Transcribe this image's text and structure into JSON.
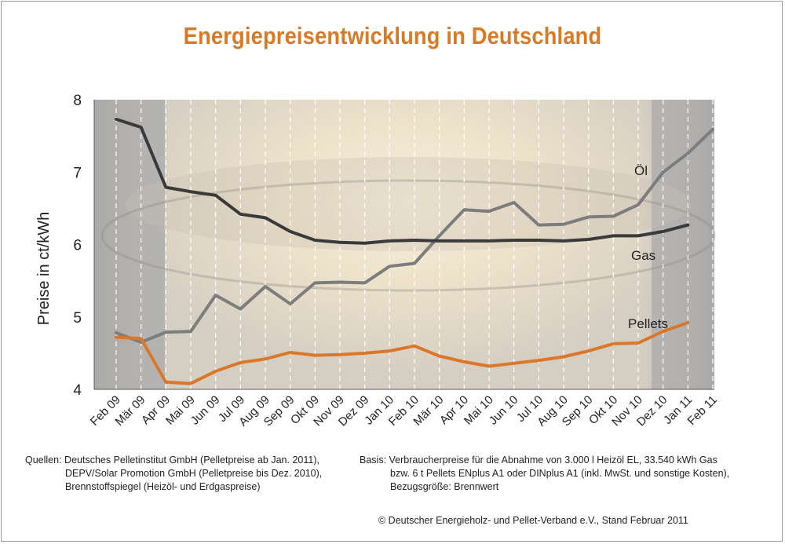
{
  "title": "Energiepreisentwicklung in Deutschland",
  "chart_data": {
    "type": "line",
    "title": "Energiepreisentwicklung in Deutschland",
    "ylabel": "Preise in ct/kWh",
    "xlabel": "",
    "ylim": [
      4,
      8
    ],
    "yticks": [
      4,
      5,
      6,
      7,
      8
    ],
    "grid": "vertical dashed",
    "categories": [
      "Feb 09",
      "Mär 09",
      "Apr 09",
      "Mai 09",
      "Jun 09",
      "Jul 09",
      "Aug 09",
      "Sep 09",
      "Okt 09",
      "Nov 09",
      "Dez 09",
      "Jan 10",
      "Feb 10",
      "Mär 10",
      "Apr 10",
      "Mai 10",
      "Jun 10",
      "Jul 10",
      "Aug 10",
      "Sep 10",
      "Okt 10",
      "Nov 10",
      "Dez 10",
      "Jan 11",
      "Feb 11"
    ],
    "series": [
      {
        "name": "Öl",
        "color": "#7d7d7d",
        "values": [
          4.78,
          4.65,
          4.79,
          4.8,
          5.3,
          5.11,
          5.42,
          5.18,
          5.47,
          5.48,
          5.47,
          5.7,
          5.74,
          6.12,
          6.48,
          6.46,
          6.58,
          6.27,
          6.28,
          6.38,
          6.39,
          6.55,
          7.0,
          7.26,
          7.59
        ]
      },
      {
        "name": "Gas",
        "color": "#3a3a3a",
        "values": [
          7.73,
          7.62,
          6.79,
          6.73,
          6.68,
          6.42,
          6.37,
          6.18,
          6.06,
          6.03,
          6.02,
          6.05,
          6.06,
          6.05,
          6.05,
          6.05,
          6.06,
          6.06,
          6.05,
          6.07,
          6.12,
          6.12,
          6.18,
          6.27,
          null
        ]
      },
      {
        "name": "Pellets",
        "color": "#d9782a",
        "values": [
          4.72,
          4.7,
          4.1,
          4.08,
          4.25,
          4.37,
          4.42,
          4.51,
          4.47,
          4.48,
          4.5,
          4.53,
          4.6,
          4.46,
          4.38,
          4.32,
          4.36,
          4.4,
          4.45,
          4.53,
          4.63,
          4.64,
          4.8,
          4.92,
          null
        ]
      }
    ]
  },
  "footer": {
    "sources_label": "Quellen:",
    "sources_lines": [
      "Deutsches Pelletinstitut GmbH (Pelletpreise ab Jan. 2011),",
      "DEPV/Solar Promotion GmbH (Pelletpreise bis Dez. 2010),",
      "Brennstoffspiegel (Heizöl- und Erdgaspreise)"
    ],
    "basis_label": "Basis:",
    "basis_lines": [
      "Verbraucherpreise für die Abnahme von 3.000 l Heizöl EL, 33.540 kWh Gas",
      "bzw. 6 t Pellets ENplus A1 oder DINplus A1 (inkl. MwSt. und sonstige Kosten),",
      "Bezugsgröße: Brennwert"
    ],
    "copyright": "© Deutscher Energieholz- und Pellet-Verband e.V., Stand Februar 2011"
  }
}
